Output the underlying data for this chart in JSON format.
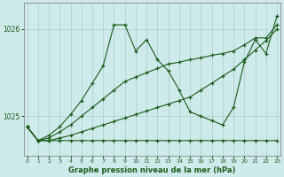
{
  "xlabel": "Graphe pression niveau de la mer (hPa)",
  "background_color": "#ceeaea",
  "grid_color": "#aacccc",
  "line_color": "#1a5c1a",
  "text_color": "#1a5c1a",
  "yticks": [
    1025,
    1026
  ],
  "xlim": [
    -0.3,
    23.3
  ],
  "ylim": [
    1024.55,
    1026.3
  ],
  "lines": [
    {
      "x": [
        0,
        1,
        2,
        3,
        4,
        5,
        6,
        7,
        8,
        9,
        10,
        11,
        12,
        13,
        14,
        15,
        16,
        17,
        18,
        19,
        20,
        21,
        22,
        23
      ],
      "y": [
        1024.88,
        1024.72,
        1024.72,
        1024.72,
        1024.72,
        1024.72,
        1024.72,
        1024.72,
        1024.72,
        1024.72,
        1024.72,
        1024.72,
        1024.72,
        1024.72,
        1024.72,
        1024.72,
        1024.72,
        1024.72,
        1024.72,
        1024.72,
        1024.72,
        1024.72,
        1024.72,
        1024.72
      ]
    },
    {
      "x": [
        0,
        1,
        2,
        3,
        4,
        5,
        6,
        7,
        8,
        9,
        10,
        11,
        12,
        13,
        14,
        15,
        16,
        17,
        18,
        19,
        20,
        21,
        22,
        23
      ],
      "y": [
        1024.88,
        1024.72,
        1024.72,
        1024.75,
        1024.78,
        1024.82,
        1024.86,
        1024.9,
        1024.94,
        1024.98,
        1025.02,
        1025.06,
        1025.1,
        1025.14,
        1025.18,
        1025.22,
        1025.3,
        1025.38,
        1025.46,
        1025.54,
        1025.65,
        1025.76,
        1025.87,
        1026.0
      ]
    },
    {
      "x": [
        0,
        1,
        2,
        3,
        4,
        5,
        6,
        7,
        8,
        9,
        10,
        11,
        12,
        13,
        14,
        15,
        16,
        17,
        18,
        19,
        20,
        21,
        22,
        23
      ],
      "y": [
        1024.88,
        1024.72,
        1024.75,
        1024.82,
        1024.9,
        1025.0,
        1025.1,
        1025.2,
        1025.3,
        1025.4,
        1025.45,
        1025.5,
        1025.55,
        1025.6,
        1025.62,
        1025.65,
        1025.67,
        1025.7,
        1025.72,
        1025.75,
        1025.82,
        1025.9,
        1025.9,
        1026.05
      ]
    },
    {
      "x": [
        0,
        1,
        2,
        3,
        4,
        5,
        6,
        7,
        8,
        9,
        10,
        11,
        12,
        13,
        14,
        15,
        16,
        17,
        18,
        19,
        20,
        21,
        22,
        23
      ],
      "y": [
        1024.88,
        1024.72,
        1024.78,
        1024.88,
        1025.02,
        1025.18,
        1025.38,
        1025.58,
        1026.05,
        1026.05,
        1025.75,
        1025.88,
        1025.65,
        1025.52,
        1025.3,
        1025.05,
        1025.0,
        1024.95,
        1024.9,
        1025.1,
        1025.62,
        1025.88,
        1025.72,
        1026.15
      ]
    }
  ]
}
